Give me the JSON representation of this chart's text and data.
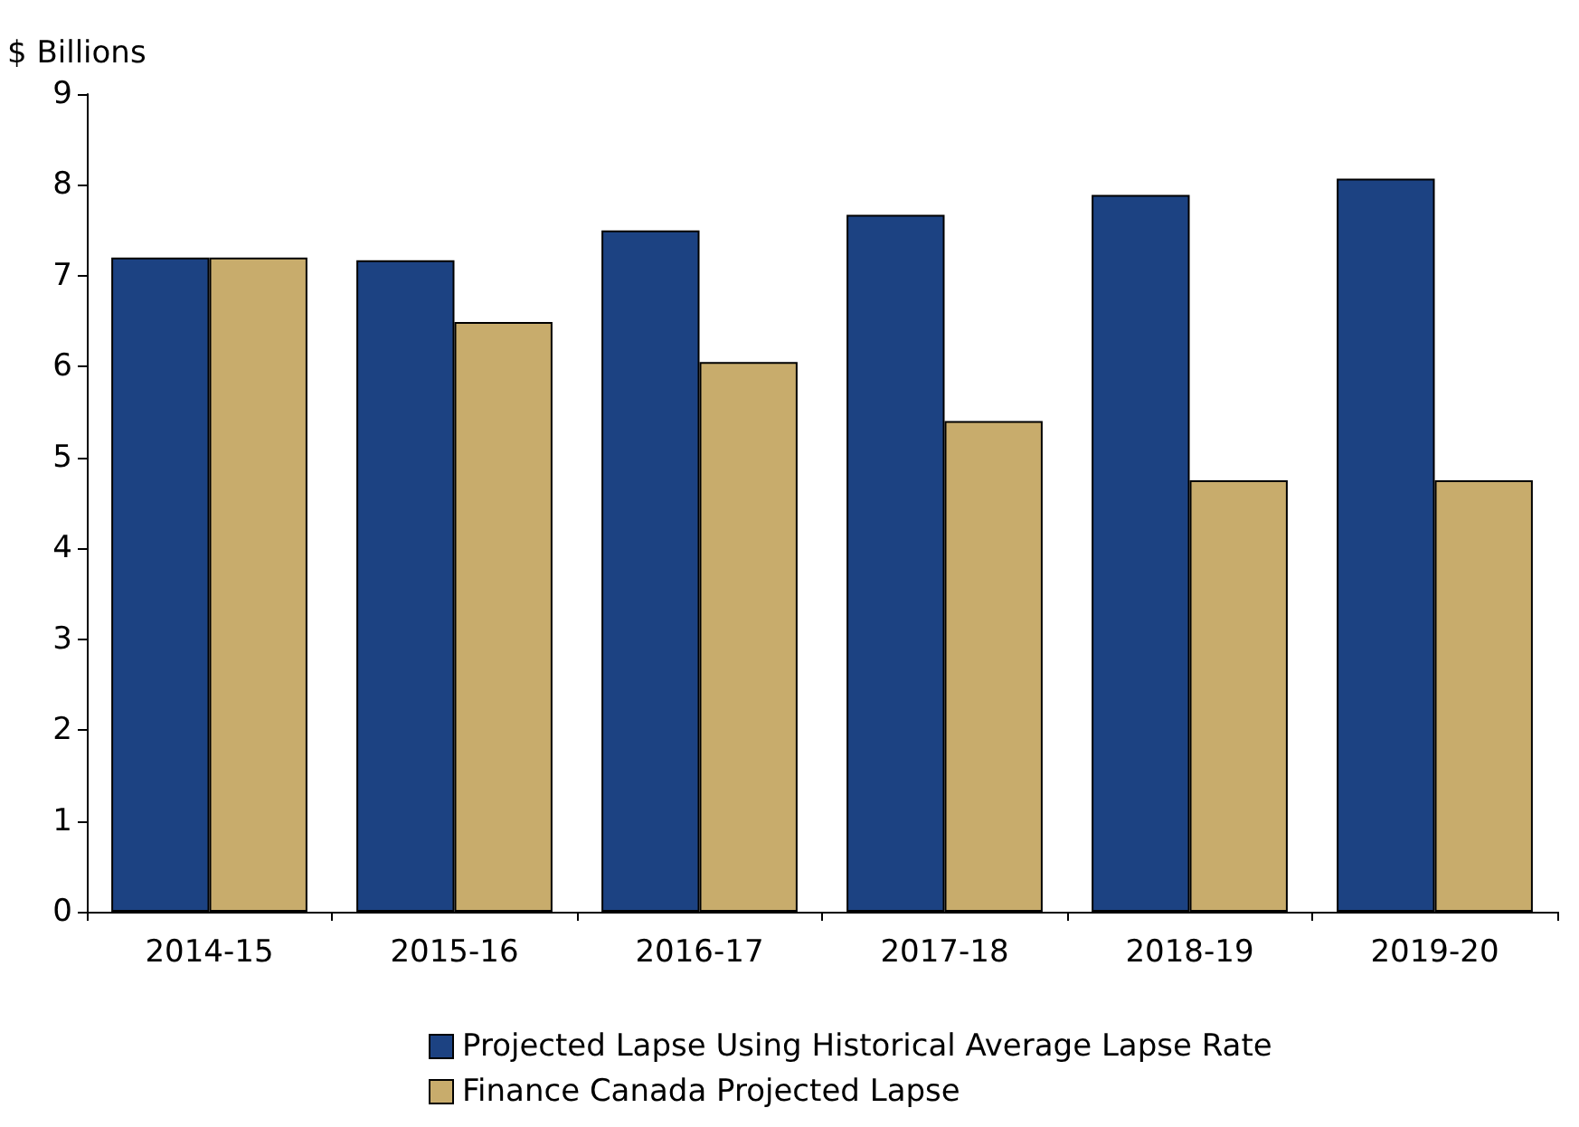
{
  "chart_data": {
    "type": "bar",
    "ylabel": "$ Billions",
    "categories": [
      "2014-15",
      "2015-16",
      "2016-17",
      "2017-18",
      "2018-19",
      "2019-20"
    ],
    "series": [
      {
        "name": "Projected Lapse Using Historical Average Lapse Rate",
        "color": "#1c4282",
        "values": [
          7.2,
          7.17,
          7.5,
          7.67,
          7.89,
          8.07
        ]
      },
      {
        "name": "Finance Canada Projected Lapse",
        "color": "#c8ac6c",
        "values": [
          7.2,
          6.49,
          6.05,
          5.4,
          4.75,
          4.75
        ]
      }
    ],
    "ylim": [
      0,
      9
    ],
    "yticks": [
      0,
      1,
      2,
      3,
      4,
      5,
      6,
      7,
      8,
      9
    ],
    "grid": false,
    "legend": "bottom"
  }
}
